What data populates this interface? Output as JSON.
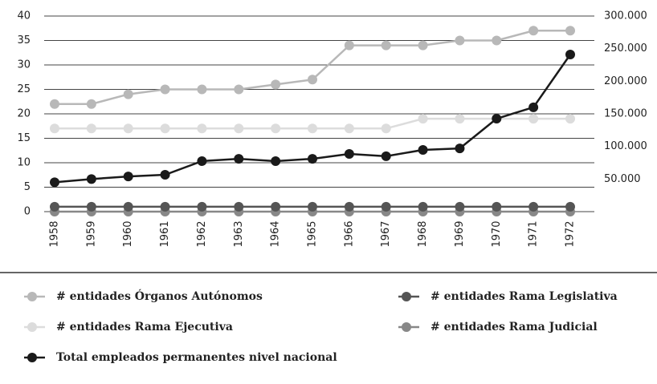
{
  "chart_data": {
    "type": "line",
    "categories": [
      "1958",
      "1959",
      "1960",
      "1961",
      "1962",
      "1963",
      "1964",
      "1965",
      "1966",
      "1967",
      "1968",
      "1969",
      "1970",
      "1971",
      "1972"
    ],
    "ylim": [
      0,
      40
    ],
    "yticks": [
      0,
      5,
      10,
      15,
      20,
      25,
      30,
      35,
      40
    ],
    "y2lim": [
      0,
      300000
    ],
    "y2ticks": [
      {
        "value": 50000,
        "label": "50.000"
      },
      {
        "value": 100000,
        "label": "100.000"
      },
      {
        "value": 150000,
        "label": "150.000"
      },
      {
        "value": 200000,
        "label": "200.000"
      },
      {
        "value": 250000,
        "label": "250.000"
      },
      {
        "value": 300000,
        "label": "300.000"
      }
    ],
    "grid": true,
    "series": [
      {
        "name": "# entidades Órganos Autónomos",
        "color": "#b8b8b8",
        "values": [
          22,
          22,
          24,
          25,
          25,
          25,
          26,
          27,
          34,
          34,
          34,
          35,
          35,
          37,
          37
        ]
      },
      {
        "name": "# entidades Rama Legislativa",
        "color": "#555555",
        "values": [
          1,
          1,
          1,
          1,
          1,
          1,
          1,
          1,
          1,
          1,
          1,
          1,
          1,
          1,
          1
        ]
      },
      {
        "name": "# entidades Rama Ejecutiva",
        "color": "#dcdcdc",
        "values": [
          17,
          17,
          17,
          17,
          17,
          17,
          17,
          17,
          17,
          17,
          19,
          19,
          19,
          19,
          19
        ]
      },
      {
        "name": "# entidades Rama Judicial",
        "color": "#888888",
        "values": [
          0,
          0,
          0,
          0,
          0,
          0,
          0,
          0,
          0,
          0,
          0,
          0,
          0,
          0,
          0
        ]
      },
      {
        "name": "Total empleados permanentes nivel nacional",
        "color": "#1a1a1a",
        "axis": "y2",
        "values": [
          45000,
          50000,
          54000,
          56500,
          77500,
          81000,
          77500,
          81000,
          88500,
          85000,
          94700,
          97000,
          142600,
          160000,
          241000
        ]
      }
    ]
  }
}
